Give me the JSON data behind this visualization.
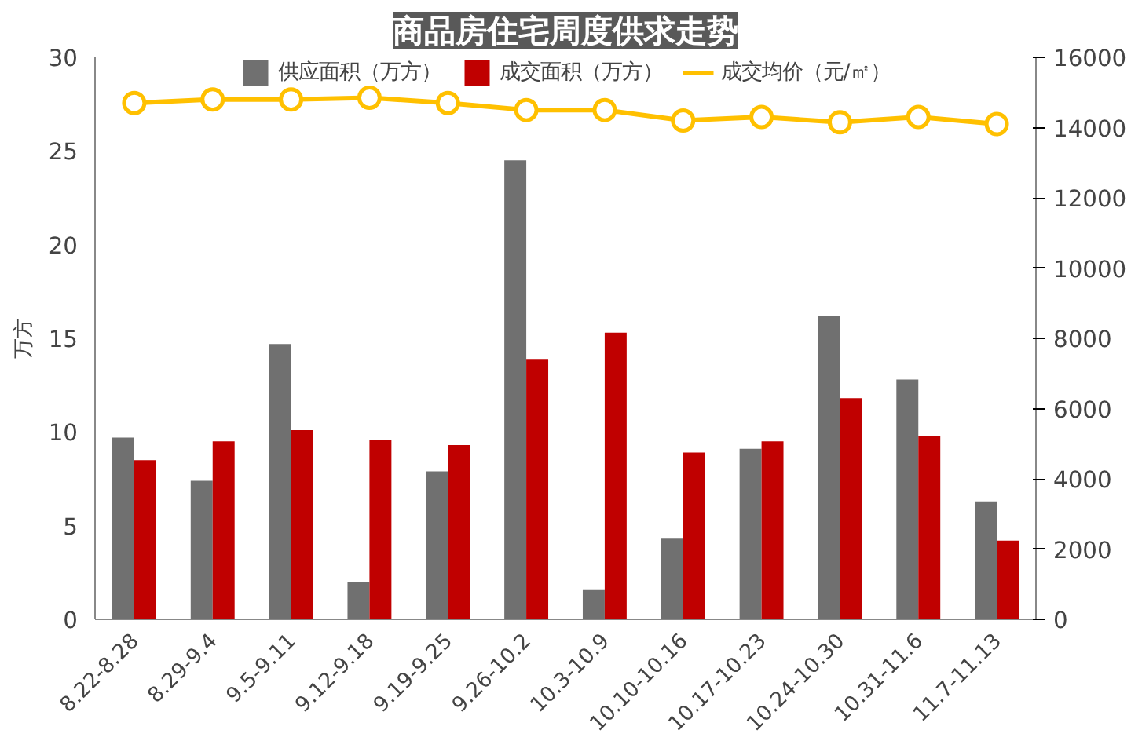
{
  "chart_data": {
    "type": "bar",
    "title": "商品房住宅周度供求走势",
    "ylabel": "万方",
    "categories": [
      "8.22-8.28",
      "8.29-9.4",
      "9.5-9.11",
      "9.12-9.18",
      "9.19-9.25",
      "9.26-10.2",
      "10.3-10.9",
      "10.10-10.16",
      "10.17-10.23",
      "10.24-10.30",
      "10.31-11.6",
      "11.7-11.13"
    ],
    "series": [
      {
        "name": "供应面积（万方）",
        "color": "#707070",
        "values": [
          9.7,
          7.4,
          14.7,
          2.0,
          7.9,
          24.5,
          1.6,
          4.3,
          9.1,
          16.2,
          12.8,
          6.3
        ]
      },
      {
        "name": "成交面积（万方）",
        "color": "#c00000",
        "values": [
          8.5,
          9.5,
          10.1,
          9.6,
          9.3,
          13.9,
          15.3,
          8.9,
          9.5,
          11.8,
          9.8,
          4.2
        ]
      },
      {
        "name": "成交均价（元/㎡）",
        "color": "#ffc000",
        "type": "line",
        "axis": "y2",
        "marker": "circle",
        "values": [
          14700,
          14800,
          14800,
          14850,
          14700,
          14500,
          14500,
          14200,
          14300,
          14150,
          14300,
          14100
        ]
      }
    ],
    "ylim": [
      0,
      30
    ],
    "yticks": [
      0,
      5,
      10,
      15,
      20,
      25,
      30
    ],
    "y2lim": [
      0,
      16000
    ],
    "y2ticks": [
      0,
      2000,
      4000,
      6000,
      8000,
      10000,
      12000,
      14000,
      16000
    ],
    "legend": "top",
    "grid": false
  }
}
